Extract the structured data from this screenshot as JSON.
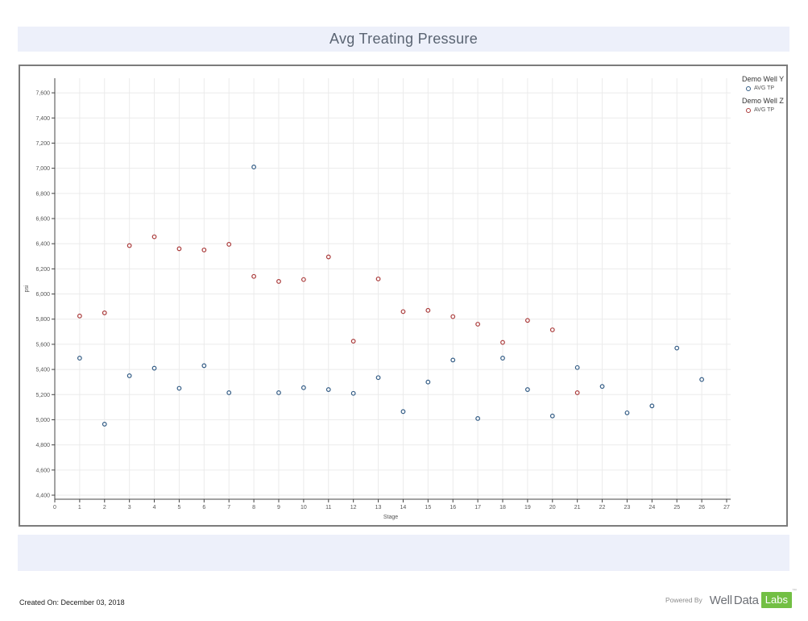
{
  "page": {
    "title": "Avg Treating Pressure"
  },
  "footer": {
    "created_on": "Created On: December 03, 2018",
    "powered_by": "Powered By",
    "brand_well": "Well",
    "brand_data": "Data",
    "brand_labs": "Labs",
    "trademark": "™"
  },
  "colors": {
    "banner_bg": "#edf0fa",
    "chart_border": "#7c7c7c",
    "axis": "#444444",
    "grid": "#ebebeb",
    "tick_text": "#555555",
    "well_y_blue": "#335c85",
    "well_z_red": "#aa3b3b",
    "labs_green": "#72bf44",
    "title_text": "#5a6472"
  },
  "chart_data": {
    "type": "scatter",
    "title": "Avg Treating Pressure",
    "xlabel": "Stage",
    "ylabel": "psi",
    "xlim": [
      0,
      27
    ],
    "ylim": [
      4368,
      7716
    ],
    "grid": true,
    "legend_position": "top-right",
    "x_ticks": [
      0,
      1,
      2,
      3,
      4,
      5,
      6,
      7,
      8,
      9,
      10,
      11,
      12,
      13,
      14,
      15,
      16,
      17,
      18,
      19,
      20,
      21,
      22,
      23,
      24,
      25,
      26,
      27
    ],
    "y_ticks": [
      4400,
      4600,
      4800,
      5000,
      5200,
      5400,
      5600,
      5800,
      6000,
      6200,
      6400,
      6600,
      6800,
      7000,
      7200,
      7400,
      7600
    ],
    "series": [
      {
        "name": "Demo Well Y",
        "label": "AVG TP",
        "color": "#335c85",
        "x": [
          1,
          2,
          3,
          4,
          5,
          6,
          7,
          8,
          9,
          10,
          11,
          12,
          13,
          14,
          15,
          16,
          17,
          18,
          19,
          20,
          21,
          22,
          23,
          24,
          25,
          26
        ],
        "y": [
          5490,
          4965,
          5350,
          5410,
          5250,
          5430,
          5215,
          7010,
          5215,
          5255,
          5240,
          5210,
          5335,
          5065,
          5300,
          5475,
          5010,
          5490,
          5240,
          5030,
          5415,
          5265,
          5055,
          5110,
          5570,
          5320
        ]
      },
      {
        "name": "Demo Well Z",
        "label": "AVG TP",
        "color": "#aa3b3b",
        "x": [
          1,
          2,
          3,
          4,
          5,
          6,
          7,
          8,
          9,
          10,
          11,
          12,
          13,
          14,
          15,
          16,
          17,
          18,
          19,
          20,
          21
        ],
        "y": [
          5825,
          5850,
          6385,
          6455,
          6360,
          6350,
          6395,
          6140,
          6100,
          6115,
          6295,
          5625,
          6120,
          5860,
          5870,
          5820,
          5760,
          5615,
          5790,
          5715,
          5215
        ]
      }
    ]
  }
}
